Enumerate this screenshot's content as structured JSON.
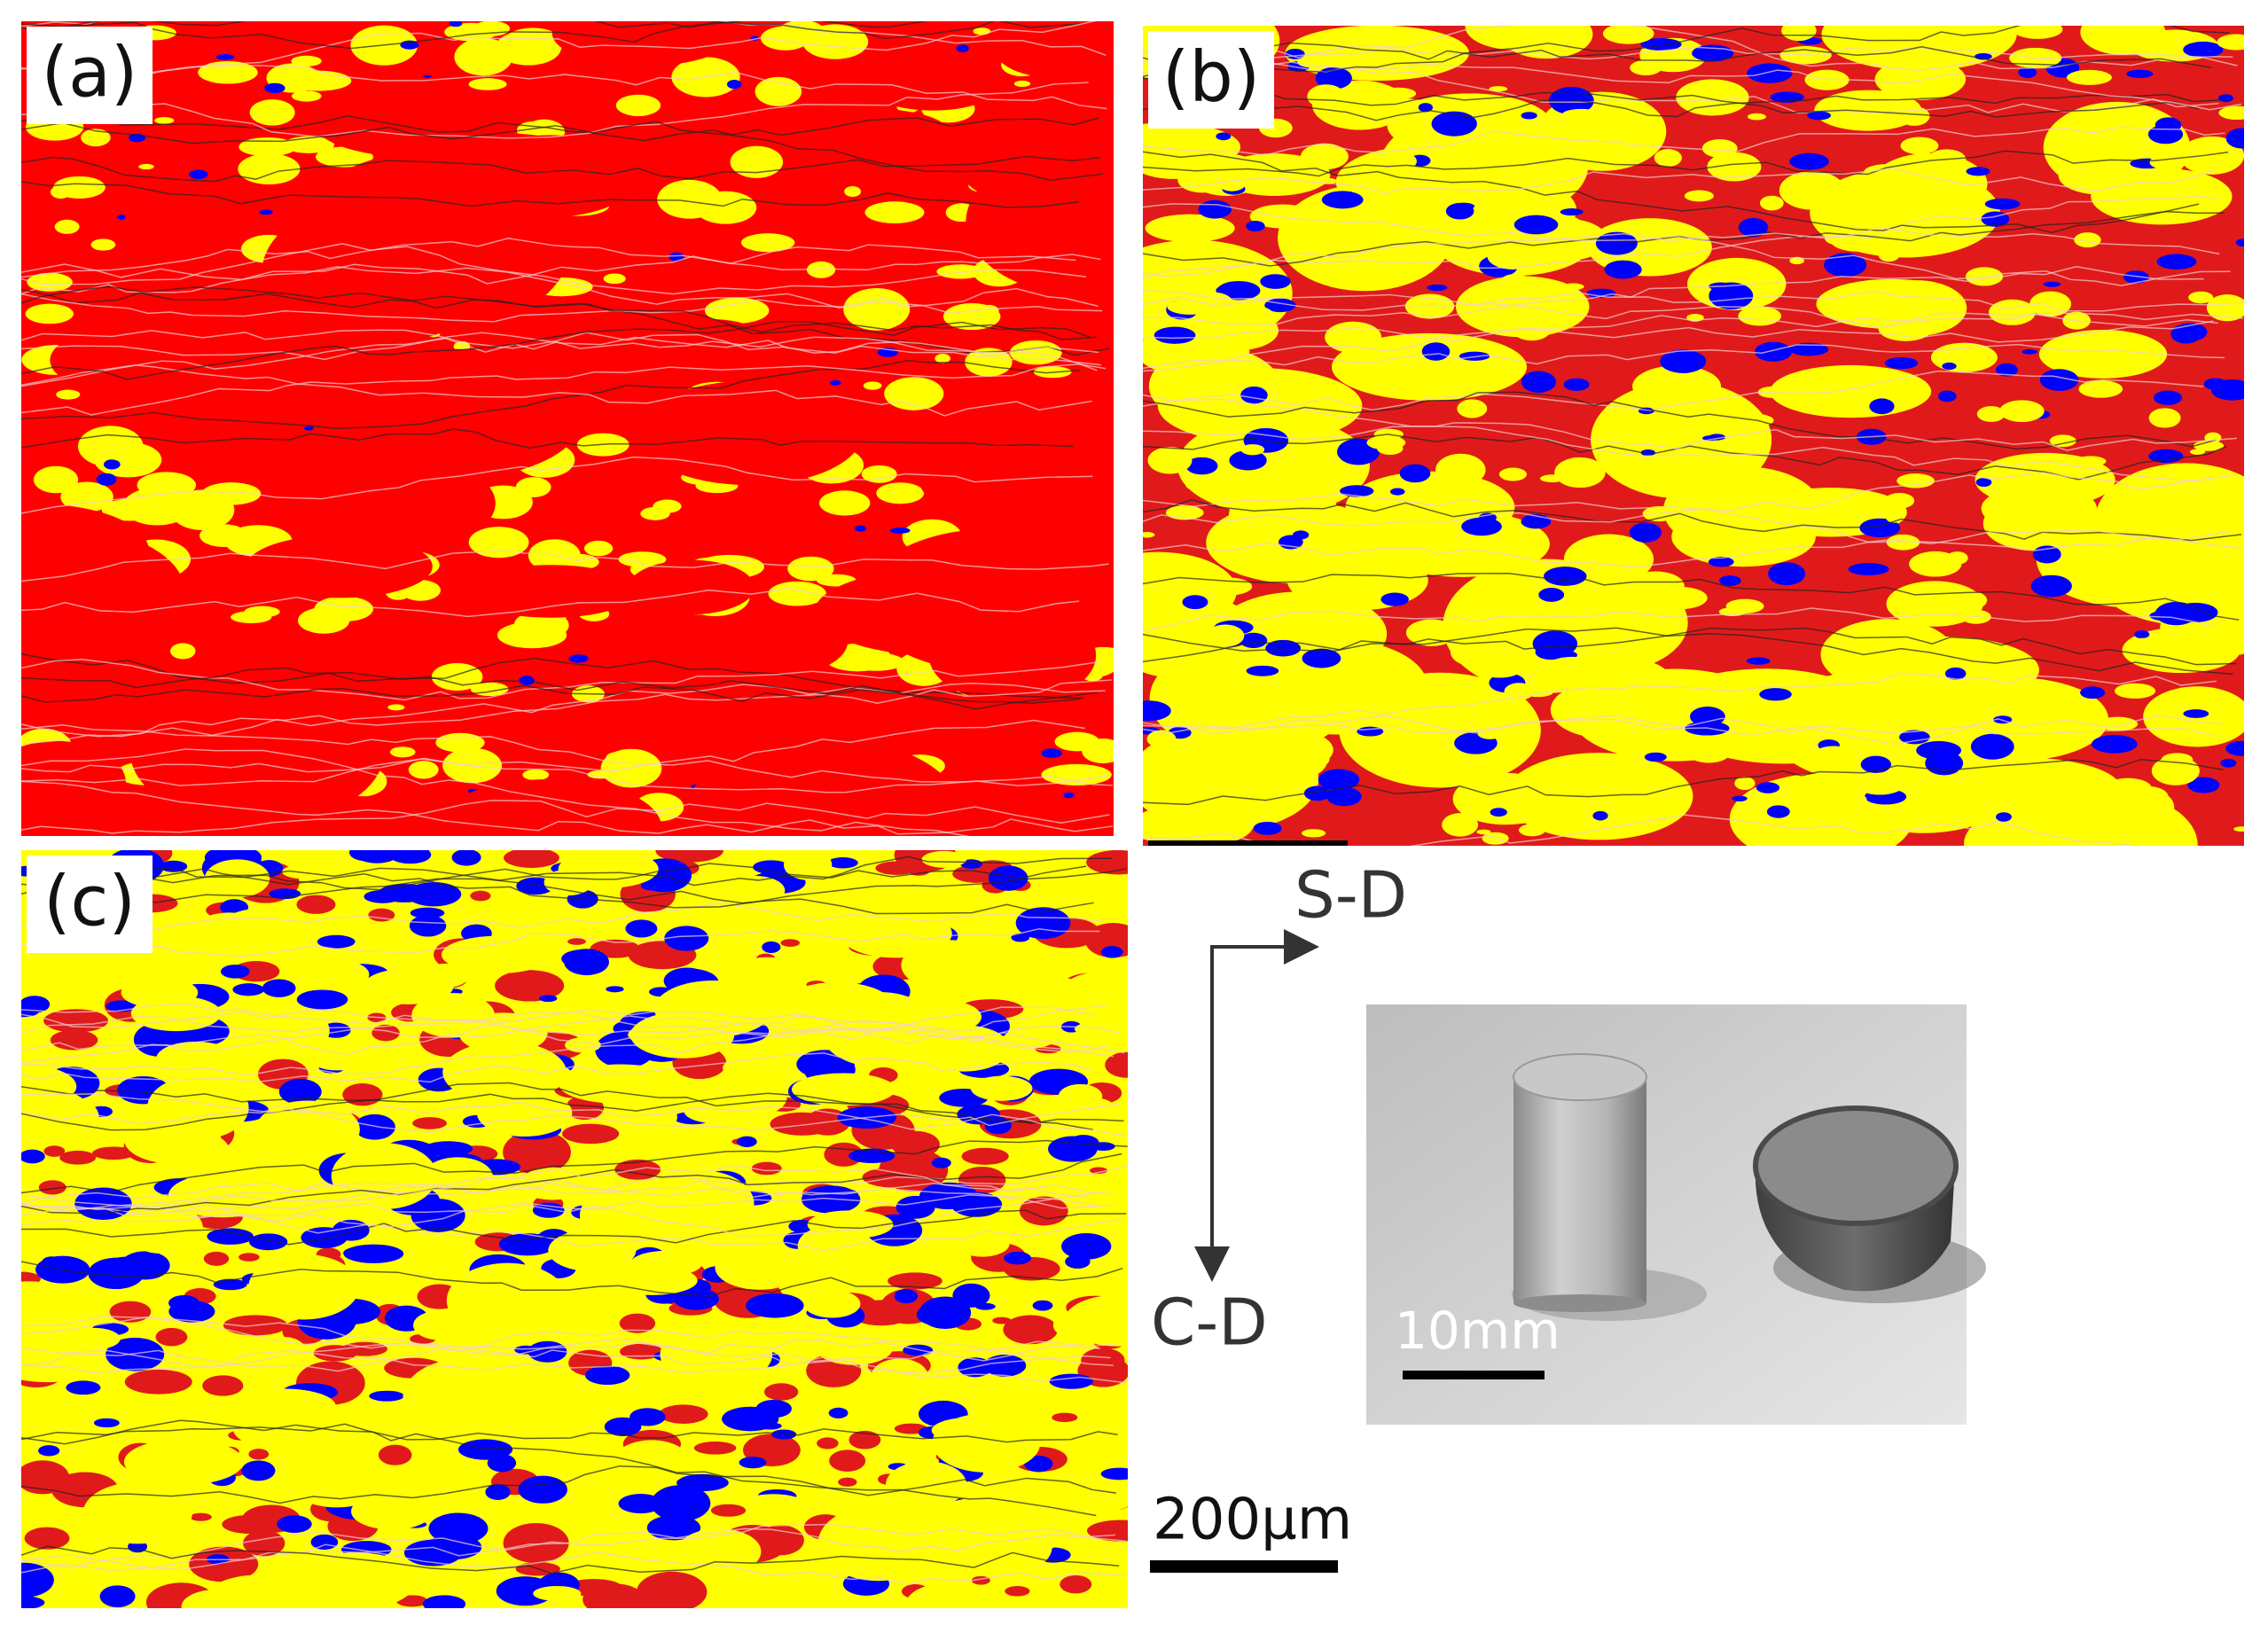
{
  "panels": [
    {
      "label": "(a)"
    },
    {
      "label": "(b)"
    },
    {
      "label": "(c)"
    }
  ],
  "axes": {
    "x_label": "S-D",
    "y_label": "C-D"
  },
  "photo": {
    "scale_label": "10mm"
  },
  "scale_bar": {
    "label": "200μm"
  }
}
